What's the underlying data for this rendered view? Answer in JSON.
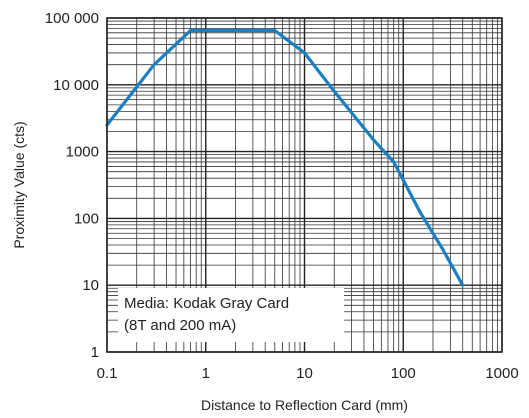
{
  "chart_data": {
    "type": "line",
    "x_scale": "log",
    "y_scale": "log",
    "xlabel": "Distance to Reflection Card (mm)",
    "ylabel": "Proximity Value (cts)",
    "xlim": [
      0.1,
      1000
    ],
    "ylim": [
      1,
      100000
    ],
    "grid": true,
    "x_ticks": [
      0.1,
      1,
      10,
      100,
      1000
    ],
    "x_tick_labels": [
      "0.1",
      "1",
      "10",
      "100",
      "1000"
    ],
    "y_ticks": [
      1,
      10,
      100,
      1000,
      10000,
      100000
    ],
    "y_tick_labels": [
      "1",
      "10",
      "100",
      "1000",
      "10 000",
      "100 000"
    ],
    "series": [
      {
        "color": "#1a7fc1",
        "x": [
          0.1,
          0.3,
          0.7,
          1.0,
          2.0,
          5.0,
          10,
          20,
          50,
          80,
          150,
          250,
          400
        ],
        "y": [
          2500,
          20000,
          65000,
          65000,
          65000,
          65000,
          30000,
          8000,
          1500,
          700,
          120,
          35,
          10
        ]
      }
    ],
    "annotation": {
      "lines": [
        "Media: Kodak Gray Card",
        "(8T and 200 mA)"
      ],
      "placement": "bottom-left"
    }
  }
}
